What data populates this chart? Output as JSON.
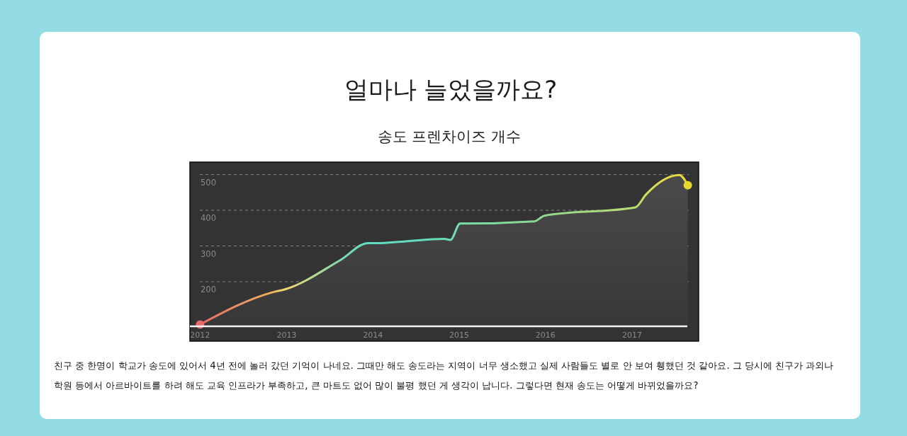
{
  "chart_data": {
    "type": "area",
    "title": "얼마나 늘었을까요?",
    "subtitle": "송도 프렌차이즈 개수",
    "x": [
      "2012-01-01",
      "2012-11-01",
      "2012-12-28",
      "2013-08-15",
      "2013-12-12",
      "2014-01-22",
      "2014-05-01",
      "2014-10-30",
      "2014-11-25",
      "2015-01-05",
      "2015-02-01",
      "2015-11-15",
      "2015-12-28",
      "2017-01-15",
      "2017-03-01",
      "2017-07-20",
      "2017-08-25"
    ],
    "series": [
      {
        "values": [
          80,
          170,
          179,
          260,
          308,
          308,
          312,
          320,
          317,
          363,
          363,
          369,
          385,
          408,
          444,
          499,
          470
        ],
        "colors": [
          "#e86a6a",
          "#f0b060",
          "#f0d870",
          "#7fdcb0",
          "#5fdcc0",
          "#5fdcc0",
          "#62dcbe",
          "#68dcba",
          "#6adcb8",
          "#78dca8",
          "#7adca6",
          "#8ad894",
          "#92d88e",
          "#b8dc70",
          "#d0dc5c",
          "#e8dc40",
          "#e8d830"
        ]
      }
    ],
    "xlim": [
      "2011-11-19",
      "2017-10-10"
    ],
    "ylim": [
      77,
      535
    ],
    "xticks": [
      "2012",
      "2013",
      "2014",
      "2015",
      "2016",
      "2017"
    ],
    "yticks": [
      200,
      300,
      400,
      500
    ],
    "grid": "y",
    "annotations": [
      "친구 중 한명이 학교가 송도에 있어서 4년 전에 놀러 갔던 기억이 나네요. 그때만 해도 송도라는 지역이 너무 생소했고 실제 사람들도 별로 안 보여 휑했던 것 같아요. 그 당시에 친구가 과외나 학원 등에서 아르바이트를 하려 해도 교육 인프라가 부족하고, 큰 마트도 없어 많이 불평 했던 게 생각이 납니다. 그렇다면 현재 송도는 어떻게 바뀌었을까요?"
    ]
  }
}
